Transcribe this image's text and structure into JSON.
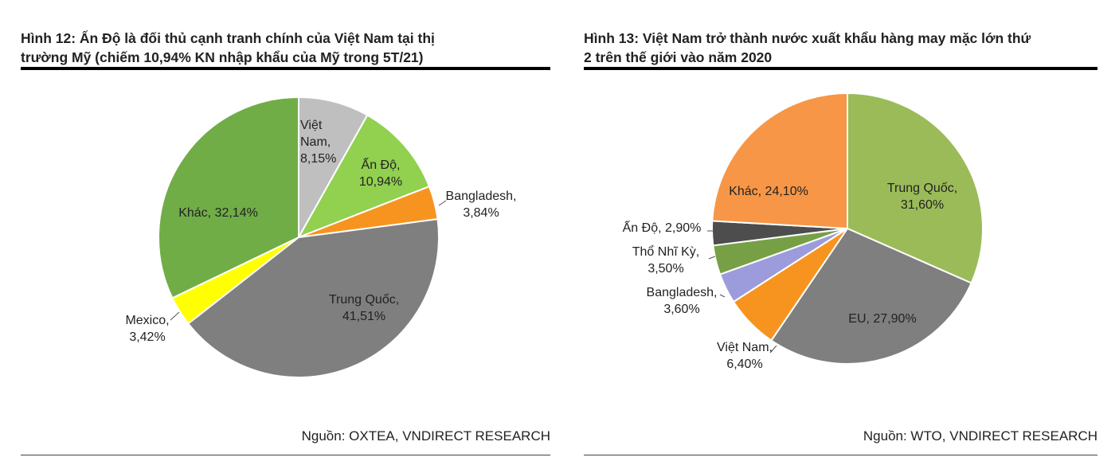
{
  "chart_data": [
    {
      "type": "pie",
      "title": "Hình 12: Ấn Độ là đối thủ cạnh tranh chính của Việt Nam tại thị trường Mỹ (chiếm 10,94% KN nhập khẩu của Mỹ trong 5T/21)",
      "title_lines": [
        "Hình 12: Ấn Độ là đối thủ cạnh tranh chính của Việt Nam tại thị",
        "trường Mỹ (chiếm 10,94% KN nhập khẩu của Mỹ trong 5T/21)"
      ],
      "source": "Nguồn: OXTEA, VNDIRECT RESEARCH",
      "slices": [
        {
          "name": "Việt Nam",
          "value": 8.15,
          "label_lines": [
            "Việt",
            "Nam,",
            "8,15%"
          ],
          "color": "#bfbfbf"
        },
        {
          "name": "Ấn Độ",
          "value": 10.94,
          "label_lines": [
            "Ấn Độ,",
            "10,94%"
          ],
          "color": "#92d050"
        },
        {
          "name": "Bangladesh",
          "value": 3.84,
          "label_lines": [
            "Bangladesh,",
            "3,84%"
          ],
          "color": "#f79420"
        },
        {
          "name": "Trung Quốc",
          "value": 41.51,
          "label_lines": [
            "Trung  Quốc,",
            "41,51%"
          ],
          "color": "#7f7f7f"
        },
        {
          "name": "Mexico",
          "value": 3.42,
          "label_lines": [
            "Mexico,",
            "3,42%"
          ],
          "color": "#ffff00"
        },
        {
          "name": "Khác",
          "value": 32.14,
          "label_lines": [
            "Khác, 32,14%"
          ],
          "color": "#70ad47"
        }
      ]
    },
    {
      "type": "pie",
      "title": "Hình 13: Việt Nam trở thành nước xuất khẩu hàng may mặc lớn thứ 2 trên thế giới vào năm 2020",
      "title_lines": [
        "Hình 13: Việt Nam trở thành nước xuất khẩu hàng may mặc lớn thứ",
        "2 trên thế giới vào năm 2020"
      ],
      "source": "Nguồn: WTO, VNDIRECT RESEARCH",
      "slices": [
        {
          "name": "Trung Quốc",
          "value": 31.6,
          "label_lines": [
            "Trung  Quốc,",
            "31,60%"
          ],
          "color": "#9bbb59"
        },
        {
          "name": "EU",
          "value": 27.9,
          "label_lines": [
            "EU, 27,90%"
          ],
          "color": "#7f7f7f"
        },
        {
          "name": "Việt Nam",
          "value": 6.4,
          "label_lines": [
            "Việt Nam,",
            "6,40%"
          ],
          "color": "#f79420"
        },
        {
          "name": "Bangladesh",
          "value": 3.6,
          "label_lines": [
            "Bangladesh,",
            "3,60%"
          ],
          "color": "#9c9cdc"
        },
        {
          "name": "Thổ Nhĩ Kỳ",
          "value": 3.5,
          "label_lines": [
            "Thổ  Nhĩ Kỳ,",
            "3,50%"
          ],
          "color": "#77a046"
        },
        {
          "name": "Ấn Độ",
          "value": 2.9,
          "label_lines": [
            "Ấn Độ, 2,90%"
          ],
          "color": "#4d4d4d"
        },
        {
          "name": "Khác",
          "value": 24.1,
          "label_lines": [
            "Khác, 24,10%"
          ],
          "color": "#f79646"
        }
      ]
    }
  ]
}
